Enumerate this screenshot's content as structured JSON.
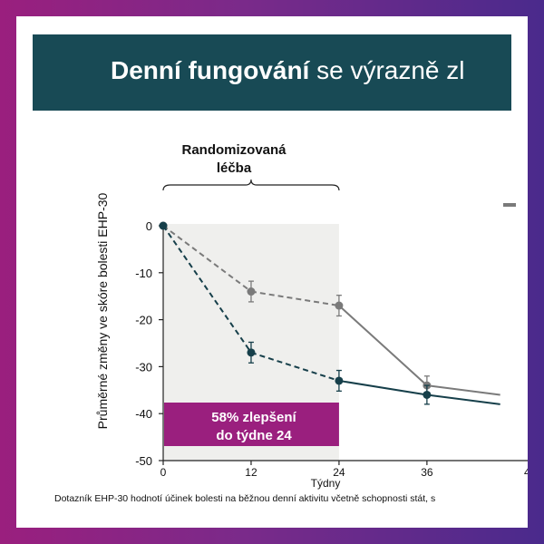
{
  "title": {
    "bold": "Denní fungování",
    "rest": " se výrazně zl"
  },
  "chart_data": {
    "type": "line",
    "bracket_label_line1": "Randomizovaná",
    "bracket_label_line2": "léčba",
    "ylabel": "Průměrné změny ve skóre bolesti EHP-30",
    "xlabel": "Týdny",
    "ylim": [
      -50,
      0
    ],
    "yticks": [
      0,
      -10,
      -20,
      -30,
      -40,
      -50
    ],
    "xticks": [
      0,
      12,
      24,
      36
    ],
    "xtick_clipped_label": "4",
    "shaded_region_weeks": [
      0,
      24
    ],
    "grid": false,
    "series": [
      {
        "key": "grey",
        "color": "#7a7a7a",
        "points": [
          {
            "x": 0,
            "y": 0,
            "err": 0,
            "style": "dashed"
          },
          {
            "x": 12,
            "y": -14,
            "err": 2.2,
            "style": "dashed"
          },
          {
            "x": 24,
            "y": -17,
            "err": 2.2,
            "style": "solid"
          },
          {
            "x": 36,
            "y": -34,
            "err": 2.0,
            "style": "solid"
          },
          {
            "x": 46,
            "y": -36,
            "err": 0,
            "style": "solid"
          }
        ]
      },
      {
        "key": "teal",
        "color": "#163f4a",
        "points": [
          {
            "x": 0,
            "y": 0,
            "err": 0,
            "style": "dashed"
          },
          {
            "x": 12,
            "y": -27,
            "err": 2.2,
            "style": "dashed"
          },
          {
            "x": 24,
            "y": -33,
            "err": 2.2,
            "style": "solid"
          },
          {
            "x": 36,
            "y": -36,
            "err": 2.0,
            "style": "solid"
          },
          {
            "x": 46,
            "y": -38,
            "err": 0,
            "style": "solid"
          }
        ]
      }
    ],
    "callout": {
      "line1": "58% zlepšení",
      "line2": "do týdne 24",
      "color": "#9a1f7e"
    },
    "legend_fragment_color": "#7a7a7a"
  },
  "footnote": "Dotazník EHP-30 hodnotí účinek bolesti na běžnou denní aktivitu včetně schopnosti stát, s"
}
